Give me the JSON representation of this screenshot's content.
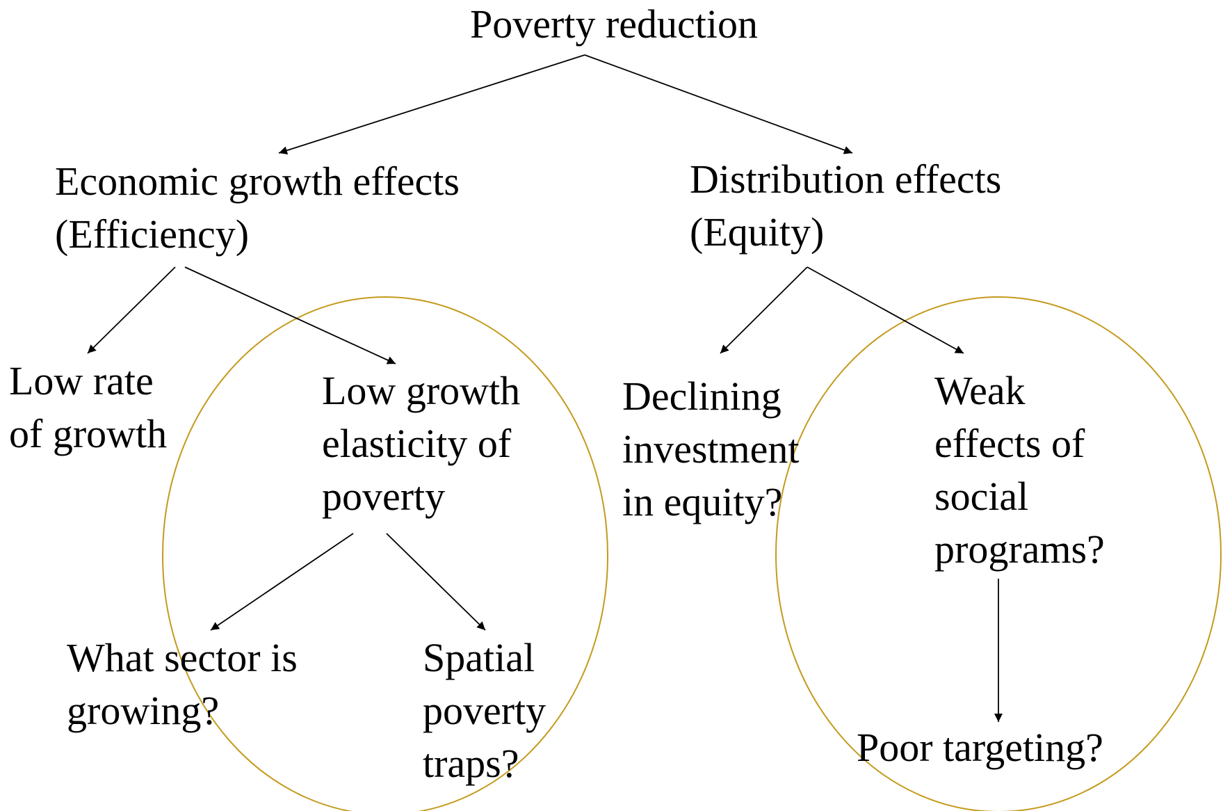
{
  "nodes": [
    {
      "lines": [
        "Poverty reduction"
      ]
    },
    {
      "lines": [
        "Economic growth effects",
        "(Efficiency)"
      ]
    },
    {
      "lines": [
        "Distribution effects",
        "(Equity)"
      ]
    },
    {
      "lines": [
        "Low rate",
        "of growth"
      ]
    },
    {
      "lines": [
        "Low growth",
        "elasticity of",
        "poverty"
      ]
    },
    {
      "lines": [
        "Declining",
        "investment",
        "in equity?"
      ]
    },
    {
      "lines": [
        "Weak",
        "effects of",
        "social",
        "programs?"
      ]
    },
    {
      "lines": [
        "What sector is",
        "growing?"
      ]
    },
    {
      "lines": [
        "Spatial",
        "poverty",
        "traps?"
      ]
    },
    {
      "lines": [
        "Poor targeting?"
      ]
    }
  ]
}
